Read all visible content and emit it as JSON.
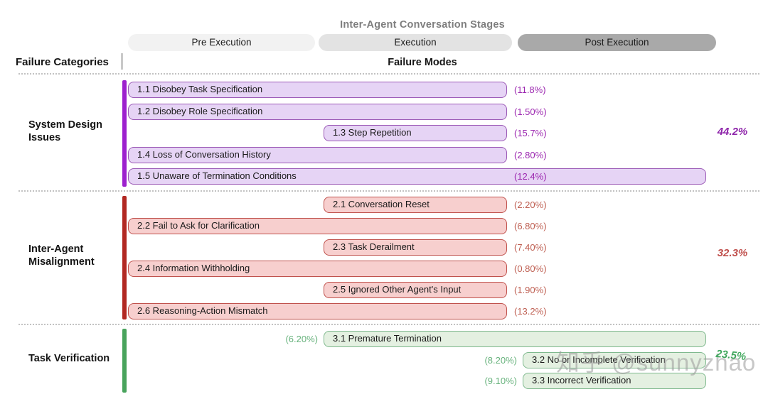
{
  "header": {
    "title": "Inter-Agent Conversation Stages",
    "stages": [
      {
        "label": "Pre Execution",
        "fill": "#F2F2F2"
      },
      {
        "label": "Execution",
        "fill": "#E3E3E3"
      },
      {
        "label": "Post Execution",
        "fill": "#A9A9A9"
      }
    ],
    "left_label": "Failure Categories",
    "center_label": "Failure Modes"
  },
  "categories": [
    {
      "label_lines": [
        "System Design",
        "Issues"
      ],
      "total": "44.2%",
      "colors": {
        "accent": "#9D20CE",
        "bar_fill": "#E6D4F5",
        "bar_border": "#9B59B6",
        "pct": "#9C27B0",
        "total": "#8E24AA"
      },
      "modes": [
        {
          "label": "1.1 Disobey Task Specification",
          "pct": "(11.8%)",
          "start": "pre",
          "end": "mid",
          "pct_pos": "right"
        },
        {
          "label": "1.2 Disobey Role Specification",
          "pct": "(1.50%)",
          "start": "pre",
          "end": "mid",
          "pct_pos": "right"
        },
        {
          "label": "1.3 Step Repetition",
          "pct": "(15.7%)",
          "start": "exec",
          "end": "mid",
          "pct_pos": "right"
        },
        {
          "label": "1.4 Loss of Conversation History",
          "pct": "(2.80%)",
          "start": "pre",
          "end": "mid",
          "pct_pos": "right"
        },
        {
          "label": "1.5 Unaware of Termination Conditions",
          "pct": "(12.4%)",
          "start": "pre",
          "end": "right",
          "pct_pos": "inside"
        }
      ]
    },
    {
      "label_lines": [
        "Inter-Agent",
        "Misalignment"
      ],
      "total": "32.3%",
      "colors": {
        "accent": "#B22822",
        "bar_fill": "#F7CFCE",
        "bar_border": "#C0524D",
        "pct": "#BE5E51",
        "total": "#C0504D"
      },
      "modes": [
        {
          "label": "2.1 Conversation Reset",
          "pct": "(2.20%)",
          "start": "exec",
          "end": "mid",
          "pct_pos": "right"
        },
        {
          "label": "2.2 Fail to Ask for Clarification",
          "pct": "(6.80%)",
          "start": "pre",
          "end": "mid",
          "pct_pos": "right"
        },
        {
          "label": "2.3 Task Derailment",
          "pct": "(7.40%)",
          "start": "exec",
          "end": "mid",
          "pct_pos": "right"
        },
        {
          "label": "2.4 Information Withholding",
          "pct": "(0.80%)",
          "start": "pre",
          "end": "mid",
          "pct_pos": "right"
        },
        {
          "label": "2.5 Ignored Other Agent's Input",
          "pct": "(1.90%)",
          "start": "exec",
          "end": "mid",
          "pct_pos": "right"
        },
        {
          "label": "2.6 Reasoning-Action Mismatch",
          "pct": "(13.2%)",
          "start": "pre",
          "end": "mid",
          "pct_pos": "right"
        }
      ]
    },
    {
      "label_lines": [
        "Task Verification"
      ],
      "total": "23.5%",
      "colors": {
        "accent": "#48A35C",
        "bar_fill": "#E4F0E1",
        "bar_border": "#7FB98E",
        "pct": "#67B27C",
        "total": "#41A85E"
      },
      "modes": [
        {
          "label": "3.1  Premature Termination",
          "pct": "(6.20%)",
          "start": "exec",
          "end": "right",
          "pct_pos": "left"
        },
        {
          "label": "3.2 No or Incomplete Verification",
          "pct": "(8.20%)",
          "start": "post",
          "end": "right",
          "pct_pos": "left"
        },
        {
          "label": "3.3 Incorrect Verification",
          "pct": "(9.10%)",
          "start": "post",
          "end": "right",
          "pct_pos": "left"
        }
      ]
    }
  ],
  "watermark": "知乎 @sunnyzhao"
}
